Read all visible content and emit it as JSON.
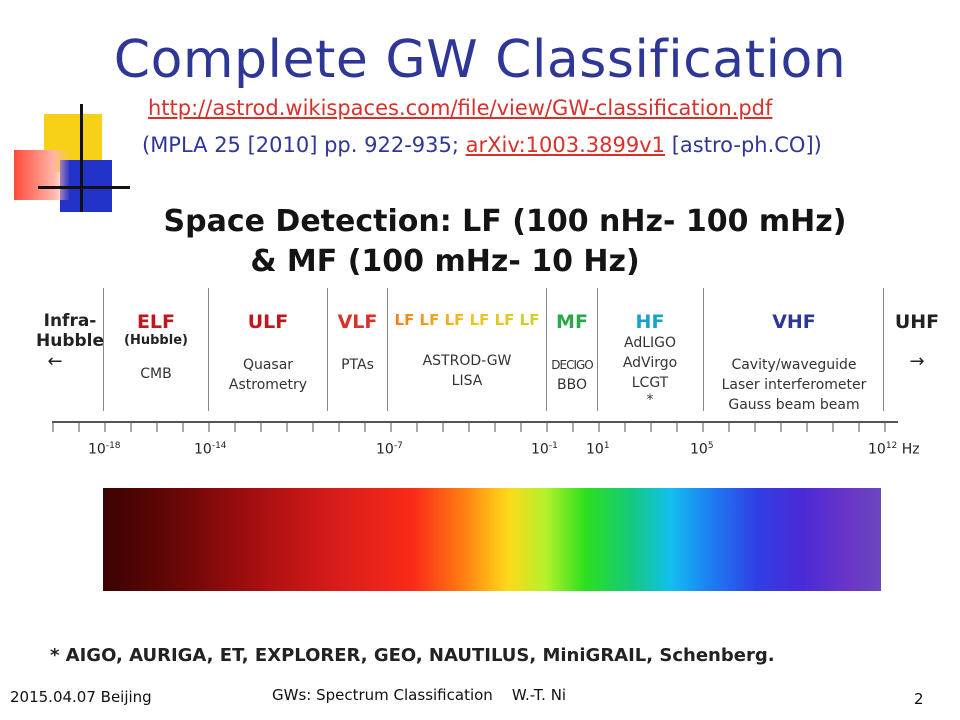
{
  "title": "Complete GW Classification",
  "reference": {
    "url": "http://astrod.wikispaces.com/file/view/GW-classification.pdf",
    "prefix": "(MPLA 25 [2010] pp. 922-935; ",
    "arxiv": "arXiv:1003.3899v1",
    "suffix": " [astro-ph.CO])"
  },
  "subtitle": {
    "line1": "Space Detection: LF (100 nHz- 100 mHz)",
    "line2": "& MF (100 mHz- 10 Hz)"
  },
  "bands": {
    "infra_hubble": {
      "line1": "Infra-",
      "line2": "Hubble",
      "arrow": "←"
    },
    "elf": {
      "label": "ELF",
      "sub": "(Hubble)",
      "detector": "CMB"
    },
    "ulf": {
      "label": "ULF",
      "line1": "Quasar",
      "line2": "Astrometry"
    },
    "vlf": {
      "label": "VLF",
      "detector": "PTAs"
    },
    "lf": {
      "label": "LF LF LF LF LF LF",
      "line1": "ASTROD-GW",
      "line2": "LISA"
    },
    "mf": {
      "label": "MF",
      "line1": "DECIGO",
      "line2": "BBO"
    },
    "hf": {
      "label": "HF",
      "line1": "AdLIGO",
      "line2": "AdVirgo",
      "line3": "LCGT",
      "line4": "*"
    },
    "vhf": {
      "label": "VHF",
      "line1": "Cavity/waveguide",
      "line2": "Laser interferometer",
      "line3": "Gauss beam beam"
    },
    "uhf": {
      "label": "UHF",
      "arrow": "→"
    }
  },
  "axis": {
    "ticks": [
      {
        "base": "10",
        "exp": "-18"
      },
      {
        "base": "10",
        "exp": "-14"
      },
      {
        "base": "10",
        "exp": "-7"
      },
      {
        "base": "10",
        "exp": "-1"
      },
      {
        "base": "10",
        "exp": "1"
      },
      {
        "base": "10",
        "exp": "5"
      },
      {
        "base": "10",
        "exp": "12"
      }
    ],
    "unit": "Hz"
  },
  "footnote": "* AIGO, AURIGA, ET, EXPLORER, GEO, NAUTILUS, MiniGRAIL, Schenberg.",
  "footer": {
    "date_place": "2015.04.07 Beijing",
    "talk": "GWs: Spectrum Classification    W.-T. Ni",
    "page": "2"
  },
  "colors": {
    "title": "#2f3796",
    "link": "#d9302a",
    "band_red": "#c0161c",
    "band_lf": "#f5a623",
    "band_mf": "#2aa84a",
    "band_hf": "#16a3c4",
    "band_vhf": "#2f3796"
  }
}
